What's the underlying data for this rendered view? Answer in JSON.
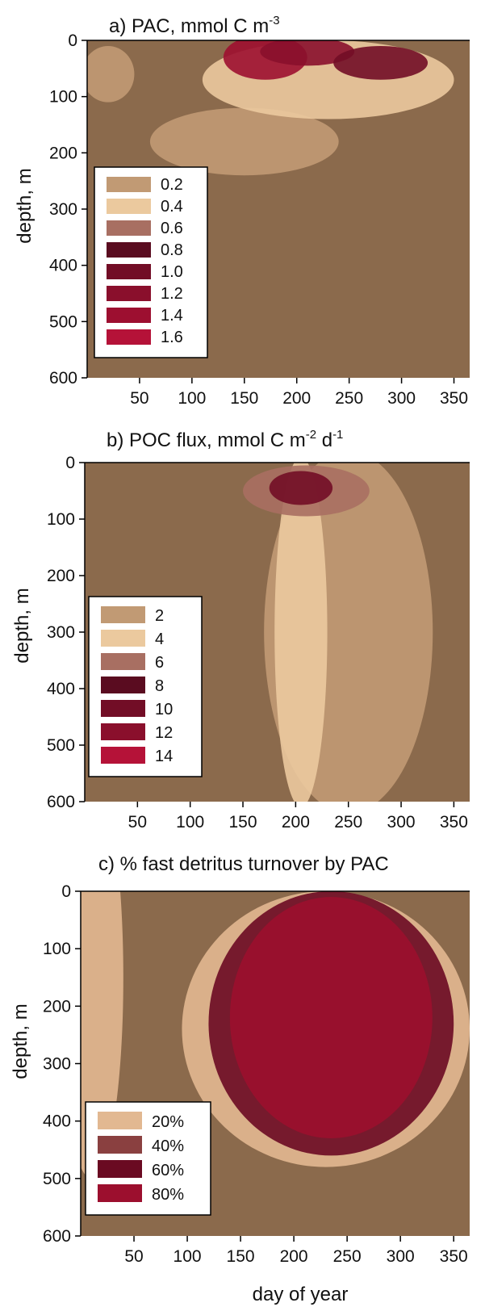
{
  "background_color": "#8b6a4c",
  "chart_data": [
    {
      "type": "heatmap",
      "title": "a) PAC, mmol C m",
      "title_superscript": "-3",
      "xlabel": "",
      "ylabel": "depth, m",
      "xlim": [
        0,
        365
      ],
      "ylim": [
        600,
        0
      ],
      "x_ticks": [
        "50",
        "100",
        "150",
        "200",
        "250",
        "300",
        "350"
      ],
      "x_tick_values": [
        50,
        100,
        150,
        200,
        250,
        300,
        350
      ],
      "y_ticks": [
        "0",
        "100",
        "200",
        "300",
        "400",
        "500",
        "600"
      ],
      "y_tick_values": [
        0,
        100,
        200,
        300,
        400,
        500,
        600
      ],
      "legend_position": "lower-left",
      "legend": [
        {
          "label": "0.2",
          "color": "#c19a74"
        },
        {
          "label": "0.4",
          "color": "#ebc99e"
        },
        {
          "label": "0.6",
          "color": "#a86f62"
        },
        {
          "label": "0.8",
          "color": "#5a0c20"
        },
        {
          "label": "1.0",
          "color": "#720d26"
        },
        {
          "label": "1.2",
          "color": "#8a0f2c"
        },
        {
          "label": "1.4",
          "color": "#9d0f30"
        },
        {
          "label": "1.6",
          "color": "#b51238"
        }
      ],
      "blobs": [
        {
          "cx": 20,
          "cy": 60,
          "rx": 25,
          "ry": 50,
          "v": 0.2
        },
        {
          "cx": 150,
          "cy": 180,
          "rx": 90,
          "ry": 60,
          "v": 0.2
        },
        {
          "cx": 230,
          "cy": 70,
          "rx": 120,
          "ry": 70,
          "v": 0.4
        },
        {
          "cx": 170,
          "cy": 30,
          "rx": 40,
          "ry": 40,
          "v": 1.4
        },
        {
          "cx": 210,
          "cy": 20,
          "rx": 45,
          "ry": 25,
          "v": 1.2
        },
        {
          "cx": 280,
          "cy": 40,
          "rx": 45,
          "ry": 30,
          "v": 1.1
        }
      ]
    },
    {
      "type": "heatmap",
      "title": "b) POC flux, mmol C m",
      "title_superscript": "-2",
      "title_suffix": " d",
      "title_superscript2": "-1",
      "xlabel": "",
      "ylabel": "depth, m",
      "xlim": [
        0,
        365
      ],
      "ylim": [
        600,
        0
      ],
      "x_ticks": [
        "50",
        "100",
        "150",
        "200",
        "250",
        "300",
        "350"
      ],
      "x_tick_values": [
        50,
        100,
        150,
        200,
        250,
        300,
        350
      ],
      "y_ticks": [
        "0",
        "100",
        "200",
        "300",
        "400",
        "500",
        "600"
      ],
      "y_tick_values": [
        0,
        100,
        200,
        300,
        400,
        500,
        600
      ],
      "legend_position": "lower-left",
      "legend": [
        {
          "label": "2",
          "color": "#c19a74"
        },
        {
          "label": "4",
          "color": "#ebc99e"
        },
        {
          "label": "6",
          "color": "#a86f62"
        },
        {
          "label": "8",
          "color": "#5a0c20"
        },
        {
          "label": "10",
          "color": "#720d26"
        },
        {
          "label": "12",
          "color": "#8a0f2c"
        },
        {
          "label": "14",
          "color": "#b51238"
        }
      ],
      "blobs": [
        {
          "cx": 250,
          "cy": 300,
          "rx": 80,
          "ry": 320,
          "v": 2
        },
        {
          "cx": 205,
          "cy": 300,
          "rx": 25,
          "ry": 310,
          "v": 4
        },
        {
          "cx": 210,
          "cy": 50,
          "rx": 60,
          "ry": 45,
          "v": 6
        },
        {
          "cx": 205,
          "cy": 45,
          "rx": 30,
          "ry": 30,
          "v": 10
        }
      ]
    },
    {
      "type": "heatmap",
      "title": "c) % fast detritus turnover by PAC",
      "xlabel": "day of year",
      "ylabel": "depth, m",
      "xlim": [
        0,
        365
      ],
      "ylim": [
        600,
        0
      ],
      "x_ticks": [
        "50",
        "100",
        "150",
        "200",
        "250",
        "300",
        "350"
      ],
      "x_tick_values": [
        50,
        100,
        150,
        200,
        250,
        300,
        350
      ],
      "y_ticks": [
        "0",
        "100",
        "200",
        "300",
        "400",
        "500",
        "600"
      ],
      "y_tick_values": [
        0,
        100,
        200,
        300,
        400,
        500,
        600
      ],
      "legend_position": "lower-left",
      "legend": [
        {
          "label": "20%",
          "color": "#e2b891"
        },
        {
          "label": "40%",
          "color": "#8a4040"
        },
        {
          "label": "60%",
          "color": "#6a0a22"
        },
        {
          "label": "80%",
          "color": "#9c0f2e"
        }
      ],
      "blobs": [
        {
          "cx": 10,
          "cy": 150,
          "rx": 30,
          "ry": 350,
          "v": 20
        },
        {
          "cx": 230,
          "cy": 240,
          "rx": 135,
          "ry": 240,
          "v": 20
        },
        {
          "cx": 235,
          "cy": 230,
          "rx": 115,
          "ry": 230,
          "v": 60
        },
        {
          "cx": 235,
          "cy": 220,
          "rx": 95,
          "ry": 210,
          "v": 80
        }
      ]
    }
  ]
}
